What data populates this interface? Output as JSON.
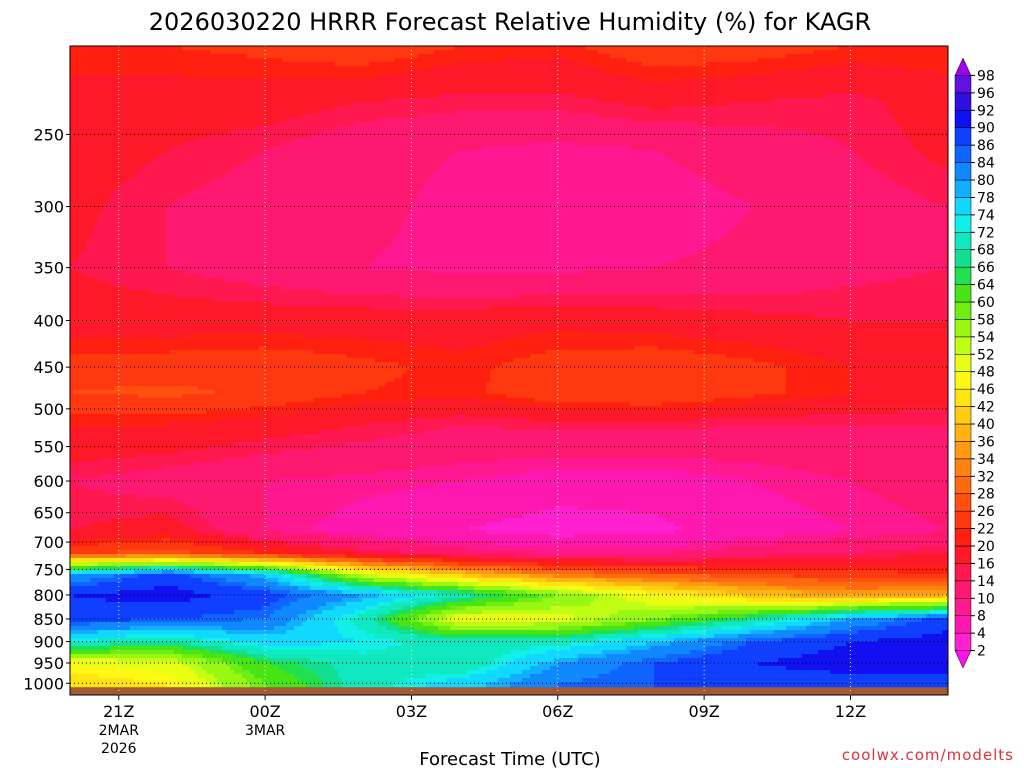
{
  "chart_data": {
    "type": "heatmap",
    "title": "2026030220 HRRR Forecast Relative Humidity (%) for KAGR",
    "xlabel": "Forecast Time (UTC)",
    "ylabel": "",
    "credit": "coolwx.com/modelts",
    "x_ticks": [
      {
        "hour": 0,
        "label": "21Z",
        "date": [
          "2MAR",
          "2026"
        ]
      },
      {
        "hour": 3,
        "label": "00Z",
        "date": [
          "3MAR"
        ]
      },
      {
        "hour": 6,
        "label": "03Z",
        "date": []
      },
      {
        "hour": 9,
        "label": "06Z",
        "date": []
      },
      {
        "hour": 12,
        "label": "09Z",
        "date": []
      },
      {
        "hour": 15,
        "label": "12Z",
        "date": []
      }
    ],
    "xlim": [
      -1,
      17
    ],
    "y_ticks": [
      250,
      300,
      350,
      400,
      450,
      500,
      550,
      600,
      650,
      700,
      750,
      800,
      850,
      900,
      950,
      1000
    ],
    "ylim": [
      1030,
      200
    ],
    "y_scale": "log-pressure",
    "grid": true,
    "colorbar": {
      "levels": [
        2,
        4,
        8,
        10,
        14,
        16,
        20,
        22,
        26,
        28,
        32,
        34,
        36,
        40,
        42,
        46,
        48,
        52,
        54,
        58,
        60,
        64,
        66,
        68,
        72,
        74,
        78,
        80,
        84,
        86,
        90,
        92,
        96,
        98
      ],
      "colors": [
        "#ff10f0",
        "#ff20d0",
        "#ff18b0",
        "#ff1890",
        "#ff1870",
        "#ff1850",
        "#ff1828",
        "#ff2010",
        "#ff3810",
        "#ff5010",
        "#ff6a10",
        "#ff8210",
        "#ff9a10",
        "#ffb410",
        "#ffcc10",
        "#ffe410",
        "#fff814",
        "#e8ff14",
        "#c0ff14",
        "#98f814",
        "#70ee14",
        "#48e414",
        "#20e050",
        "#10e090",
        "#10e8c0",
        "#10f0e8",
        "#10d8ff",
        "#10b0ff",
        "#1088ff",
        "#1064ff",
        "#1040ff",
        "#1010f0",
        "#3010e0",
        "#6010e0",
        "#a000f0"
      ]
    },
    "rh_profile": {
      "pressures": [
        200,
        230,
        260,
        300,
        350,
        400,
        450,
        480,
        520,
        600,
        680,
        720,
        760,
        800,
        850,
        900,
        950,
        1000
      ],
      "times": [
        -1,
        1,
        3,
        5,
        7,
        9,
        11,
        13,
        15,
        17
      ],
      "rh": [
        [
          21,
          22,
          23,
          25,
          22,
          21,
          25,
          24,
          22,
          22
        ],
        [
          19,
          18,
          18,
          16,
          15,
          15,
          17,
          16,
          15,
          18
        ],
        [
          18,
          16,
          14,
          11,
          10,
          9,
          10,
          12,
          14,
          17
        ],
        [
          17,
          14,
          12,
          11,
          9,
          8,
          8,
          10,
          12,
          14
        ],
        [
          16,
          14,
          12,
          10,
          9,
          9,
          10,
          11,
          13,
          14
        ],
        [
          18,
          18,
          18,
          18,
          18,
          19,
          18,
          17,
          16,
          16
        ],
        [
          24,
          24,
          25,
          23,
          21,
          24,
          25,
          23,
          20,
          18
        ],
        [
          26,
          27,
          25,
          22,
          21,
          25,
          26,
          23,
          20,
          18
        ],
        [
          20,
          20,
          18,
          16,
          14,
          15,
          15,
          14,
          14,
          14
        ],
        [
          14,
          12,
          10,
          9,
          8,
          6,
          6,
          8,
          10,
          12
        ],
        [
          16,
          18,
          10,
          6,
          4,
          2,
          3,
          6,
          8,
          10
        ],
        [
          25,
          28,
          22,
          16,
          12,
          10,
          10,
          12,
          14,
          16
        ],
        [
          80,
          88,
          78,
          52,
          40,
          32,
          28,
          26,
          24,
          22
        ],
        [
          90,
          92,
          88,
          80,
          70,
          58,
          48,
          40,
          36,
          38
        ],
        [
          88,
          86,
          84,
          70,
          48,
          50,
          58,
          68,
          80,
          88
        ],
        [
          72,
          68,
          76,
          74,
          70,
          70,
          78,
          86,
          90,
          92
        ],
        [
          48,
          50,
          64,
          70,
          68,
          80,
          86,
          90,
          92,
          92
        ],
        [
          44,
          46,
          60,
          70,
          76,
          84,
          86,
          88,
          88,
          88
        ]
      ]
    }
  }
}
